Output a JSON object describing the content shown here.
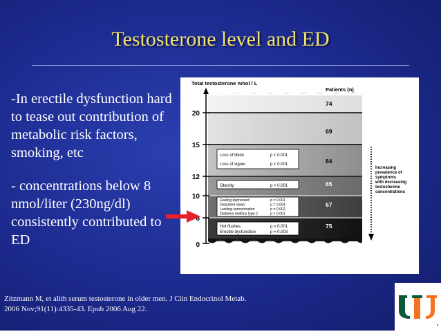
{
  "slide": {
    "title": "Testosterone level and ED",
    "bullets": [
      "-In erectile dysfunction hard to tease out contribution of metabolic risk factors, smoking, etc",
      "- concentrations below 8 nmol/liter (230ng/dl) consistently contributed to ED"
    ],
    "citation_line1": "Zitzmann M, et alith serum testosterone in older men. J Clin Endocrinol Metab.",
    "citation_line2": "2006 Nov;91(11):4335-43. Epub 2006 Aug 22."
  },
  "figure": {
    "axis_title": "Total testosterone nmol / L",
    "patients_header": "Patients (n)",
    "ticks": [
      "0",
      "8",
      "10",
      "12",
      "15",
      "20"
    ],
    "patient_counts": [
      "75",
      "67",
      "65",
      "84",
      "69",
      "74"
    ],
    "side_note": [
      "Increasing",
      "prevalence of",
      "symptoms",
      "with decreasing",
      "testosterone",
      "concentrations"
    ],
    "boxes": [
      {
        "rows": [
          {
            "symptom": "Loss of libido",
            "p": "p < 0.001"
          },
          {
            "symptom": "Loss of vigour",
            "p": "p < 0.001"
          }
        ]
      },
      {
        "rows": [
          {
            "symptom": "Obesity",
            "p": "p < 0.001"
          }
        ]
      },
      {
        "rows": [
          {
            "symptom": "Feeling depressed",
            "p": "p = 0.001"
          },
          {
            "symptom": "Disturbed sleep",
            "p": "p = 0.004"
          },
          {
            "symptom": "Lacking concentration",
            "p": "p = 0.002"
          },
          {
            "symptom": "Diabetes mellitus type 2",
            "p": "p < 0.001"
          }
        ]
      },
      {
        "rows": [
          {
            "symptom": "Hot flushes",
            "p": "p < 0.001"
          },
          {
            "symptom": "Erectile dysfunction",
            "p": "p = 0.003"
          }
        ]
      }
    ],
    "arrow_color": "#e8202a"
  },
  "logo": {
    "green": "#0a5a3a",
    "orange": "#f47321"
  }
}
